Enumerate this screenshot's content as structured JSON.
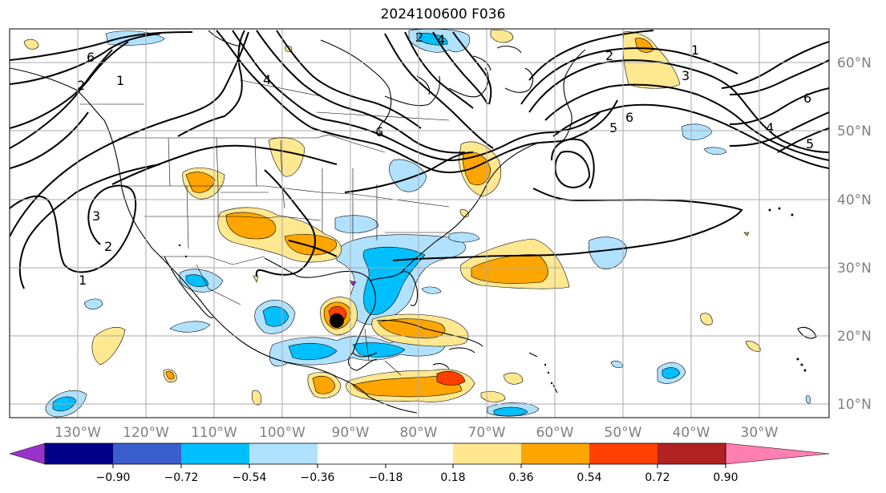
{
  "title": "2024100600 F036",
  "lon_labels": [
    "130°W",
    "120°W",
    "110°W",
    "100°W",
    "90°W",
    "80°W",
    "70°W",
    "60°W",
    "50°W",
    "40°W",
    "30°W"
  ],
  "lat_labels": [
    "60°N",
    "50°N",
    "40°N",
    "30°N",
    "20°N",
    "10°N"
  ],
  "colorbar": {
    "colors": [
      "#9932cc",
      "#00008b",
      "#3a5fcd",
      "#00bfff",
      "#b0e2ff",
      "#ffffff",
      "#ffe890",
      "#ffa500",
      "#ff4000",
      "#b22222",
      "#ff80b0"
    ],
    "ticks": [
      "−0.90",
      "−0.72",
      "−0.54",
      "−0.36",
      "−0.18",
      "0.18",
      "0.36",
      "0.54",
      "0.72",
      "0.90"
    ]
  },
  "contour_labels": [
    "6",
    "2",
    "1",
    "3",
    "2",
    "1",
    "4",
    "6",
    "4",
    "6",
    "5",
    "2",
    "1",
    "3",
    "6",
    "4",
    "5",
    "2"
  ],
  "icons": {
    "storm_center": "storm-center-dot"
  }
}
